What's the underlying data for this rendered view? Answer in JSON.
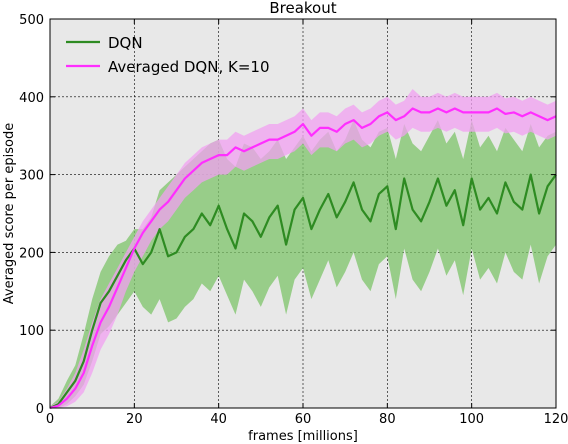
{
  "chart_data": {
    "type": "line",
    "title": "Breakout",
    "xlabel": "frames [millions]",
    "ylabel": "Averaged score per episode",
    "xlim": [
      0,
      120
    ],
    "ylim": [
      0,
      500
    ],
    "xticks": [
      0,
      20,
      40,
      60,
      80,
      100,
      120
    ],
    "yticks": [
      0,
      100,
      200,
      300,
      400,
      500
    ],
    "grid": true,
    "legend_position": "top-left",
    "series": [
      {
        "name": "DQN",
        "color": "#2e8b22",
        "band_color": "#7ec46a",
        "x": [
          0,
          2,
          4,
          6,
          8,
          10,
          12,
          14,
          16,
          18,
          20,
          22,
          24,
          26,
          28,
          30,
          32,
          34,
          36,
          38,
          40,
          42,
          44,
          46,
          48,
          50,
          52,
          54,
          56,
          58,
          60,
          62,
          64,
          66,
          68,
          70,
          72,
          74,
          76,
          78,
          80,
          82,
          84,
          86,
          88,
          90,
          92,
          94,
          96,
          98,
          100,
          102,
          104,
          106,
          108,
          110,
          112,
          114,
          116,
          118,
          120
        ],
        "values": [
          0,
          5,
          20,
          35,
          60,
          100,
          135,
          150,
          170,
          190,
          205,
          185,
          200,
          230,
          195,
          200,
          220,
          230,
          250,
          235,
          260,
          230,
          205,
          250,
          240,
          220,
          245,
          260,
          210,
          255,
          270,
          230,
          255,
          275,
          245,
          265,
          290,
          255,
          240,
          275,
          285,
          230,
          295,
          255,
          240,
          265,
          295,
          260,
          280,
          235,
          295,
          255,
          270,
          250,
          290,
          265,
          255,
          300,
          250,
          285,
          300
        ],
        "upper": [
          2,
          12,
          35,
          55,
          95,
          140,
          175,
          195,
          210,
          215,
          230,
          230,
          245,
          280,
          290,
          300,
          310,
          320,
          330,
          340,
          345,
          320,
          310,
          340,
          335,
          320,
          330,
          345,
          320,
          335,
          350,
          330,
          345,
          355,
          330,
          345,
          370,
          345,
          335,
          355,
          360,
          320,
          365,
          340,
          330,
          350,
          370,
          340,
          355,
          320,
          370,
          335,
          350,
          330,
          360,
          345,
          330,
          365,
          335,
          350,
          355
        ],
        "lower": [
          0,
          0,
          5,
          15,
          30,
          60,
          95,
          105,
          120,
          135,
          150,
          130,
          120,
          140,
          110,
          115,
          130,
          140,
          160,
          150,
          170,
          145,
          120,
          165,
          150,
          130,
          155,
          170,
          120,
          165,
          180,
          140,
          165,
          190,
          155,
          175,
          200,
          165,
          150,
          185,
          195,
          140,
          205,
          165,
          150,
          175,
          205,
          170,
          190,
          145,
          205,
          165,
          180,
          160,
          200,
          175,
          165,
          210,
          160,
          195,
          210
        ]
      },
      {
        "name": "Averaged DQN, K=10",
        "color": "#ff2eff",
        "band_color": "#f2a0f2",
        "x": [
          0,
          2,
          4,
          6,
          8,
          10,
          12,
          14,
          16,
          18,
          20,
          22,
          24,
          26,
          28,
          30,
          32,
          34,
          36,
          38,
          40,
          42,
          44,
          46,
          48,
          50,
          52,
          54,
          56,
          58,
          60,
          62,
          64,
          66,
          68,
          70,
          72,
          74,
          76,
          78,
          80,
          82,
          84,
          86,
          88,
          90,
          92,
          94,
          96,
          98,
          100,
          102,
          104,
          106,
          108,
          110,
          112,
          114,
          116,
          118,
          120
        ],
        "values": [
          0,
          3,
          12,
          25,
          45,
          80,
          110,
          130,
          155,
          180,
          205,
          225,
          240,
          255,
          265,
          280,
          295,
          305,
          315,
          320,
          325,
          325,
          335,
          330,
          335,
          340,
          345,
          345,
          350,
          355,
          365,
          350,
          360,
          360,
          355,
          365,
          370,
          360,
          365,
          375,
          380,
          370,
          375,
          385,
          380,
          380,
          385,
          380,
          385,
          380,
          380,
          380,
          380,
          385,
          378,
          380,
          375,
          380,
          375,
          370,
          375
        ],
        "upper": [
          2,
          8,
          25,
          45,
          75,
          110,
          140,
          160,
          180,
          200,
          220,
          240,
          255,
          270,
          285,
          300,
          315,
          325,
          335,
          340,
          345,
          345,
          355,
          350,
          355,
          360,
          365,
          365,
          370,
          375,
          385,
          370,
          380,
          380,
          375,
          385,
          390,
          380,
          385,
          395,
          400,
          390,
          395,
          410,
          400,
          400,
          405,
          400,
          405,
          400,
          400,
          400,
          400,
          405,
          398,
          400,
          395,
          400,
          395,
          390,
          395
        ],
        "lower": [
          0,
          0,
          2,
          8,
          20,
          45,
          75,
          95,
          120,
          150,
          175,
          195,
          215,
          230,
          240,
          255,
          270,
          280,
          290,
          295,
          300,
          300,
          310,
          305,
          310,
          315,
          320,
          320,
          325,
          330,
          340,
          325,
          335,
          335,
          330,
          340,
          345,
          335,
          340,
          350,
          355,
          345,
          350,
          360,
          355,
          355,
          360,
          355,
          360,
          355,
          355,
          355,
          355,
          360,
          353,
          355,
          350,
          355,
          350,
          345,
          350
        ]
      }
    ]
  }
}
